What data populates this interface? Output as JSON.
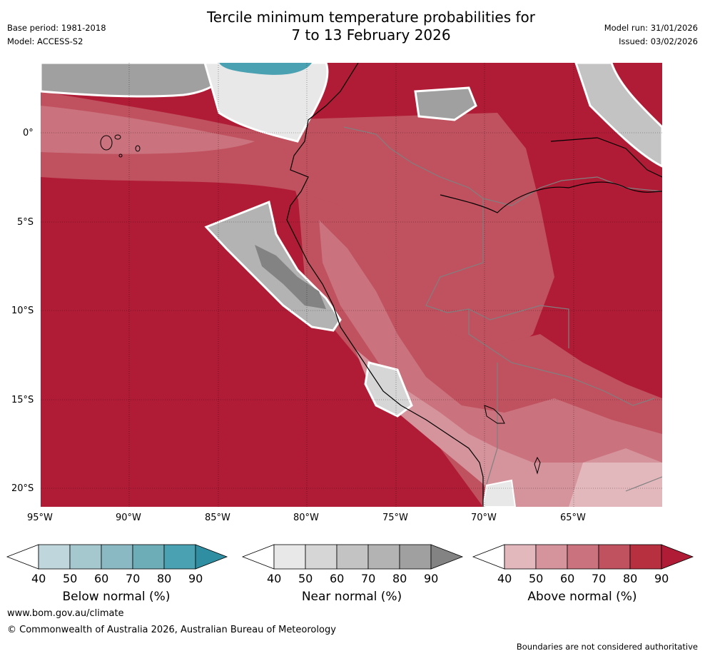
{
  "header": {
    "title_line1": "Tercile minimum temperature probabilities for",
    "title_line2": "7 to 13 February 2026",
    "base_period": "Base period: 1981-2018",
    "model": "Model: ACCESS-S2",
    "model_run": "Model run: 31/01/2026",
    "issued": "Issued: 03/02/2026"
  },
  "map": {
    "lat_labels": [
      "0°",
      "5°S",
      "10°S",
      "15°S",
      "20°S"
    ],
    "lon_labels": [
      "95°W",
      "90°W",
      "85°W",
      "80°W",
      "75°W",
      "70°W",
      "65°W"
    ]
  },
  "legends": [
    {
      "label": "Below normal (%)",
      "ticks": [
        "40",
        "50",
        "60",
        "70",
        "80",
        "90"
      ],
      "colors": [
        "#ffffff",
        "#bfd7dc",
        "#a5c8cf",
        "#8bb9c3",
        "#6cadb8",
        "#4aa1b2",
        "#2f8ea2"
      ]
    },
    {
      "label": "Near normal (%)",
      "ticks": [
        "40",
        "50",
        "60",
        "70",
        "80",
        "90"
      ],
      "colors": [
        "#ffffff",
        "#e8e8e8",
        "#d6d6d6",
        "#c3c3c3",
        "#b3b3b3",
        "#a0a0a0",
        "#838383"
      ]
    },
    {
      "label": "Above normal (%)",
      "ticks": [
        "40",
        "50",
        "60",
        "70",
        "80",
        "90"
      ],
      "colors": [
        "#ffffff",
        "#e3b8bd",
        "#d5939c",
        "#ca727d",
        "#c0515f",
        "#b7303f",
        "#b01c36"
      ]
    }
  ],
  "footer": {
    "website": "www.bom.gov.au/climate",
    "copyright": "© Commonwealth of Australia 2026, Australian Bureau of Meteorology",
    "disclaimer": "Boundaries are not considered authoritative"
  }
}
